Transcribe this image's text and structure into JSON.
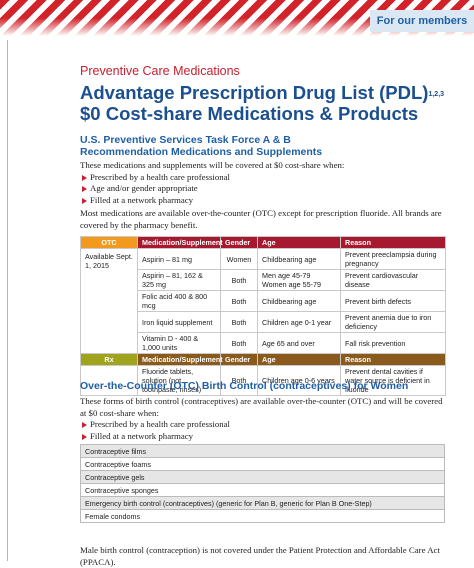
{
  "header": {
    "tab": "For our members"
  },
  "category": "Preventive Care Medications",
  "title": {
    "line1": "Advantage Prescription Drug List (PDL)",
    "superscript": "1,2,3",
    "line2": "$0 Cost-share Medications & Products"
  },
  "section1": {
    "heading": "U.S. Preventive Services Task Force A & B Recommendation Medications and Supplements",
    "intro": "These medications and supplements will be covered at $0 cost-share when:",
    "bullets": [
      "Prescribed by a health care professional",
      "Age and/or gender appropriate",
      "Filled at a network pharmacy"
    ],
    "note": "Most medications are available over-the-counter (OTC) except for prescription fluoride. All brands are covered by the pharmacy benefit.",
    "table": {
      "otc_header": [
        "OTC",
        "Medication/Supplement",
        "Gender",
        "Age",
        "Reason"
      ],
      "availability": "Available Sept. 1, 2015",
      "otc_rows": [
        [
          "Aspirin – 81 mg",
          "Women",
          "Childbearing age",
          "Prevent preeclampsia during pregnancy"
        ],
        [
          "Aspirin – 81, 162 & 325 mg",
          "Both",
          [
            "Men age 45-79",
            "Women age 55-79"
          ],
          "Prevent cardiovascular disease"
        ],
        [
          "Folic acid 400 & 800 mcg",
          "Both",
          "Childbearing age",
          "Prevent birth defects"
        ],
        [
          "Iron liquid supplement",
          "Both",
          "Children age 0-1 year",
          "Prevent anemia due to iron deficiency"
        ],
        [
          "Vitamin D - 400 & 1,000 units",
          "Both",
          "Age 65 and over",
          "Fall risk prevention"
        ]
      ],
      "rx_header": [
        "Rx",
        "Medication/Supplement",
        "Gender",
        "Age",
        "Reason"
      ],
      "rx_rows": [
        [
          "Fluoride tablets, solution (not toothpaste, rinses)",
          "Both",
          "Children age 0-6 years",
          "Prevent dental cavities if water source is deficient in fluoride"
        ]
      ]
    }
  },
  "section2": {
    "heading": "Over-the-Counter (OTC) Birth Control (contraceptives) for Women",
    "intro": "These forms of birth control (contraceptives) are available over-the-counter (OTC) and will be covered at $0 cost-share when:",
    "bullets": [
      "Prescribed by a health care professional",
      "Filled at a network pharmacy"
    ],
    "items": [
      "Contraceptive films",
      "Contraceptive foams",
      "Contraceptive gels",
      "Contraceptive sponges",
      "Emergency birth control (contraceptives) (generic for Plan B, generic for Plan B One-Step)",
      "Female condoms"
    ]
  },
  "footer": "Male birth control (contraception) is not covered under the Patient Protection and Affordable Care Act (PPACA)."
}
